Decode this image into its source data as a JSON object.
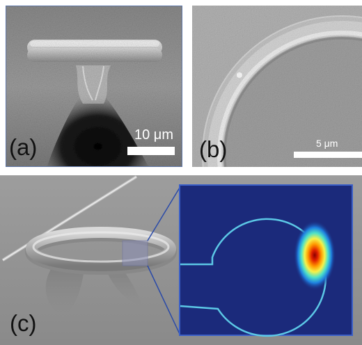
{
  "figure": {
    "panels": [
      {
        "id": "a",
        "label": "(a)",
        "scale_bar": "10 μm"
      },
      {
        "id": "b",
        "label": "(b)",
        "scale_bar": "5 μm"
      },
      {
        "id": "c",
        "label": "(c)"
      }
    ]
  }
}
